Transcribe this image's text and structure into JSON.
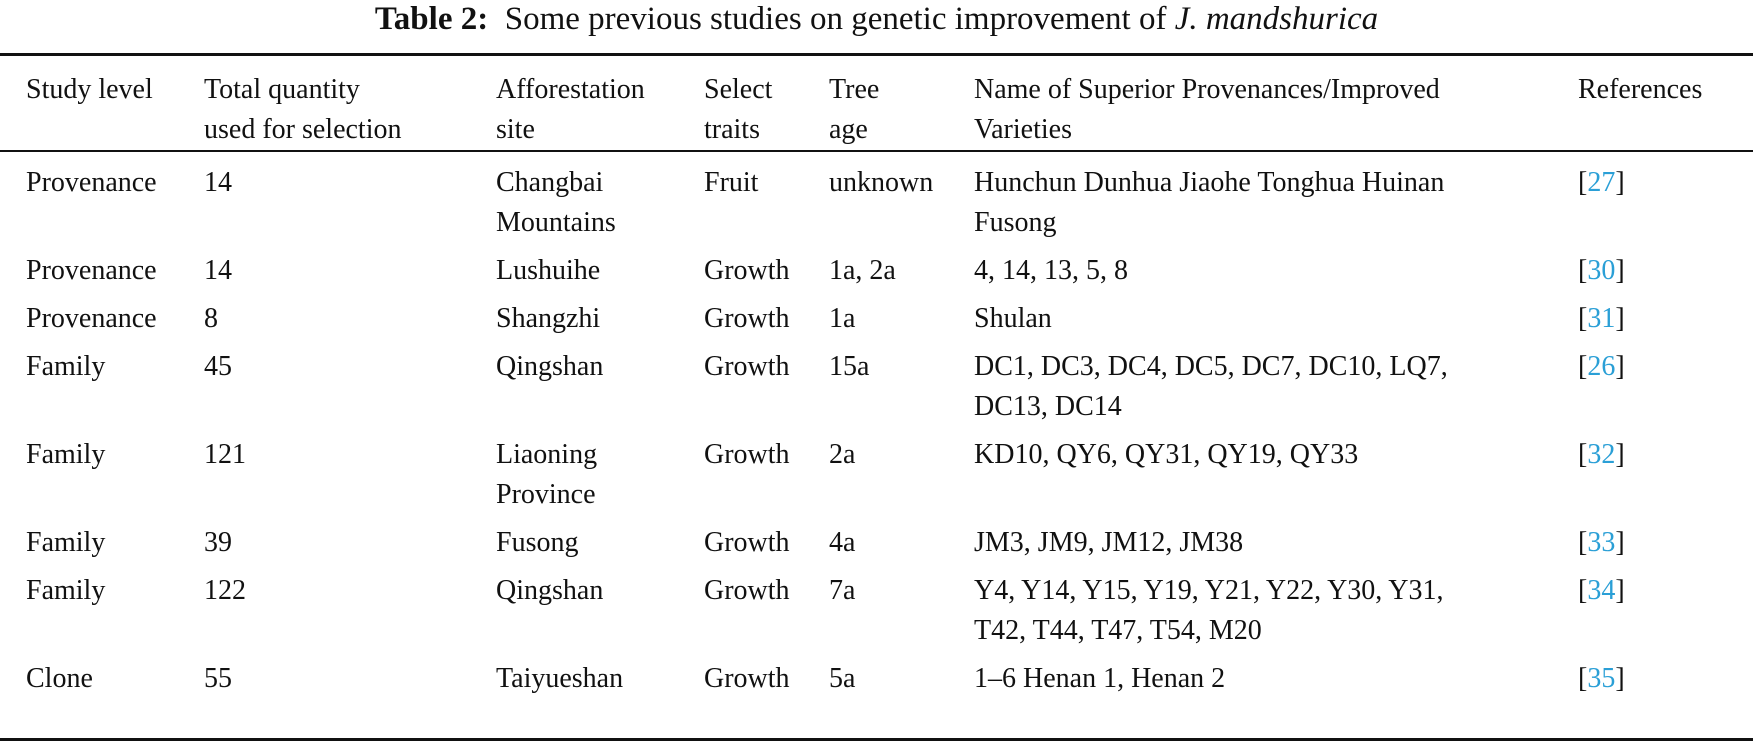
{
  "caption": {
    "label": "Table 2:",
    "text_before": "Some previous studies on genetic improvement of",
    "species": "J. mandshurica"
  },
  "table": {
    "headers": [
      [
        "Study level"
      ],
      [
        "Total quantity",
        "used for selection"
      ],
      [
        "Afforestation",
        "site"
      ],
      [
        "Select",
        "traits"
      ],
      [
        "Tree",
        "age"
      ],
      [
        "Name of Superior Provenances/Improved",
        "Varieties"
      ],
      [
        "References"
      ]
    ],
    "rows": [
      {
        "study_level": "Provenance",
        "quantity": "14",
        "site": [
          "Changbai",
          "Mountains"
        ],
        "traits": "Fruit",
        "age": "unknown",
        "names": [
          "Hunchun Dunhua Jiaohe Tonghua Huinan",
          "Fusong"
        ],
        "ref": "27"
      },
      {
        "study_level": "Provenance",
        "quantity": "14",
        "site": [
          "Lushuihe"
        ],
        "traits": "Growth",
        "age": "1a, 2a",
        "names": [
          "4, 14, 13, 5, 8"
        ],
        "ref": "30"
      },
      {
        "study_level": "Provenance",
        "quantity": "8",
        "site": [
          "Shangzhi"
        ],
        "traits": "Growth",
        "age": "1a",
        "names": [
          "Shulan"
        ],
        "ref": "31"
      },
      {
        "study_level": "Family",
        "quantity": "45",
        "site": [
          "Qingshan"
        ],
        "traits": "Growth",
        "age": "15a",
        "names": [
          "DC1, DC3, DC4, DC5, DC7, DC10, LQ7,",
          "DC13, DC14"
        ],
        "ref": "26"
      },
      {
        "study_level": "Family",
        "quantity": "121",
        "site": [
          "Liaoning",
          "Province"
        ],
        "traits": "Growth",
        "age": "2a",
        "names": [
          "KD10, QY6, QY31, QY19, QY33"
        ],
        "ref": "32"
      },
      {
        "study_level": "Family",
        "quantity": "39",
        "site": [
          "Fusong"
        ],
        "traits": "Growth",
        "age": "4a",
        "names": [
          "JM3, JM9, JM12, JM38"
        ],
        "ref": "33"
      },
      {
        "study_level": "Family",
        "quantity": "122",
        "site": [
          "Qingshan"
        ],
        "traits": "Growth",
        "age": "7a",
        "names": [
          "Y4, Y14, Y15, Y19, Y21, Y22, Y30, Y31,",
          "T42, T44, T47, T54, M20"
        ],
        "ref": "34"
      },
      {
        "study_level": "Clone",
        "quantity": "55",
        "site": [
          "Taiyueshan"
        ],
        "traits": "Growth",
        "age": "5a",
        "names": [
          "1–6 Henan 1, Henan 2"
        ],
        "ref": "35"
      }
    ]
  }
}
